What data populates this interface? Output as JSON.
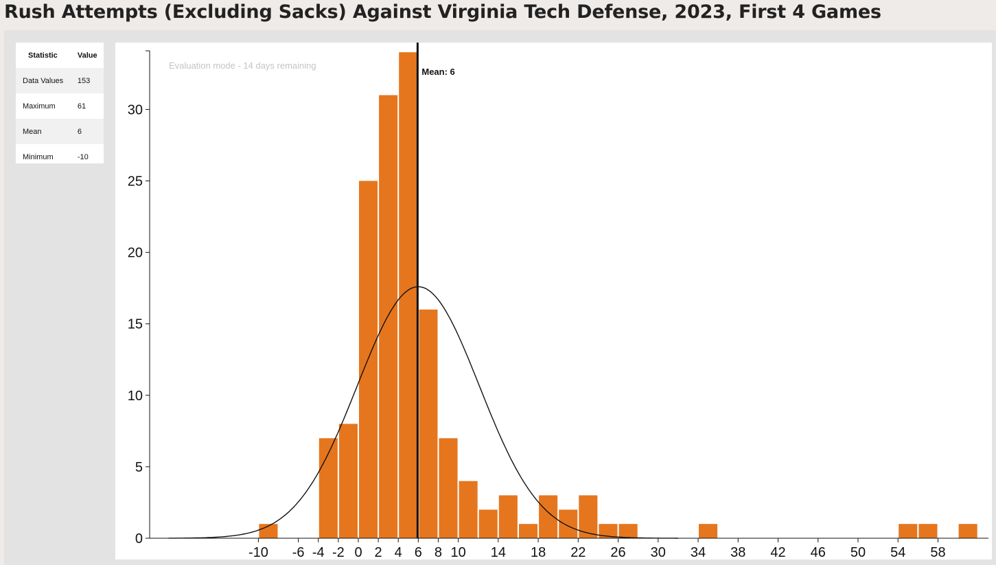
{
  "title": "Rush Attempts (Excluding Sacks) Against Virginia Tech Defense, 2023, First 4 Games",
  "stats_table": {
    "header": {
      "statistic": "Statistic",
      "value": "Value"
    },
    "rows": [
      {
        "label": "Data Values",
        "value": "153"
      },
      {
        "label": "Maximum",
        "value": "61"
      },
      {
        "label": "Mean",
        "value": "6"
      },
      {
        "label": "Minimum",
        "value": "-10"
      }
    ]
  },
  "watermark": "Evaluation mode - 14 days remaining",
  "colors": {
    "bar": "#e5761e",
    "curve": "#111111",
    "mean_line": "#111111"
  },
  "chart_data": {
    "type": "bar",
    "title": "Rush Attempts (Excluding Sacks) Against Virginia Tech Defense, 2023, First 4 Games",
    "xlabel": "",
    "ylabel": "",
    "bin_width": 2,
    "bins": [
      {
        "start": -10,
        "count": 1
      },
      {
        "start": -4,
        "count": 7
      },
      {
        "start": -2,
        "count": 8
      },
      {
        "start": 0,
        "count": 25
      },
      {
        "start": 2,
        "count": 31
      },
      {
        "start": 4,
        "count": 34
      },
      {
        "start": 6,
        "count": 16
      },
      {
        "start": 8,
        "count": 7
      },
      {
        "start": 10,
        "count": 4
      },
      {
        "start": 12,
        "count": 2
      },
      {
        "start": 14,
        "count": 3
      },
      {
        "start": 16,
        "count": 1
      },
      {
        "start": 18,
        "count": 3
      },
      {
        "start": 20,
        "count": 2
      },
      {
        "start": 22,
        "count": 3
      },
      {
        "start": 24,
        "count": 1
      },
      {
        "start": 26,
        "count": 1
      },
      {
        "start": 34,
        "count": 1
      },
      {
        "start": 54,
        "count": 1
      },
      {
        "start": 56,
        "count": 1
      },
      {
        "start": 60,
        "count": 1
      }
    ],
    "x_ticks": [
      -10,
      -6,
      -4,
      -2,
      0,
      2,
      4,
      6,
      8,
      10,
      14,
      18,
      22,
      26,
      30,
      34,
      38,
      42,
      46,
      50,
      54,
      58
    ],
    "y_ticks": [
      0,
      5,
      10,
      15,
      20,
      25,
      30
    ],
    "xlim": [
      -20,
      62
    ],
    "ylim": [
      0,
      34
    ],
    "mean": 6,
    "mean_label": "Mean: 6",
    "normal_curve": {
      "mean": 6,
      "peak": 17.6,
      "sd": 6.1,
      "range": [
        -19,
        32
      ]
    },
    "grid": false,
    "legend": "none"
  }
}
